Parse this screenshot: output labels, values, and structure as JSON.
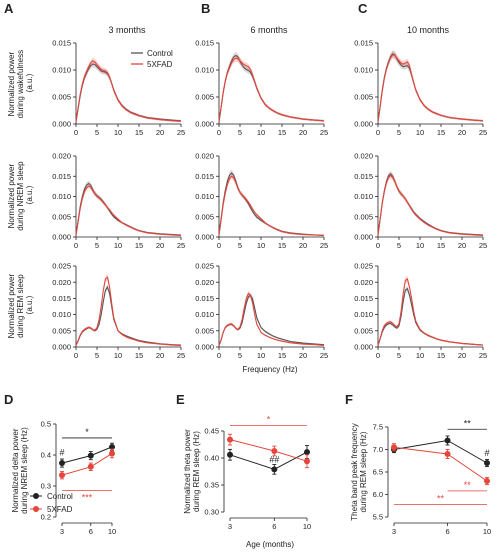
{
  "figure": {
    "panel_letters": [
      "A",
      "B",
      "C",
      "D",
      "E",
      "F"
    ],
    "column_titles": [
      "3 months",
      "6 months",
      "10 months"
    ],
    "row_ylabels": [
      [
        "Normalized power",
        "during wakefulness",
        "(a.u.)"
      ],
      [
        "Normalized power",
        "during NREM sleep",
        "(a.u.)"
      ],
      [
        "Normalized power",
        "during REM sleep",
        "(a.u.)"
      ]
    ],
    "shared_xlabel": "Frequency (Hz)",
    "legend": [
      "Control",
      "5XFAD"
    ],
    "colors": {
      "control": "#555555",
      "fxfad": "#e5453b",
      "sig_red": "#e5453b",
      "sig_black": "#222222"
    }
  },
  "chart_data": [
    {
      "type": "line",
      "panel": "A-C spectra grid",
      "x_ticks": [
        0,
        5,
        10,
        15,
        20,
        25
      ],
      "x_range": [
        0,
        25
      ],
      "rows": [
        {
          "state": "wakefulness",
          "y_ticks": [
            "0.000",
            "0.005",
            "0.010",
            "0.015"
          ],
          "ylim": [
            0,
            0.015
          ]
        },
        {
          "state": "NREM sleep",
          "y_ticks": [
            "0.000",
            "0.005",
            "0.010",
            "0.015",
            "0.020"
          ],
          "ylim": [
            0,
            0.02
          ]
        },
        {
          "state": "REM sleep",
          "y_ticks": [
            "0.000",
            "0.005",
            "0.010",
            "0.015",
            "0.020",
            "0.025"
          ],
          "ylim": [
            0,
            0.025
          ]
        }
      ],
      "x": [
        0,
        0.5,
        1,
        1.5,
        2,
        2.5,
        3,
        3.5,
        4,
        4.5,
        5,
        5.5,
        6,
        6.5,
        7,
        7.5,
        8,
        8.5,
        9,
        10,
        11,
        12,
        13,
        14,
        15,
        17,
        20,
        23,
        25
      ],
      "spectra": [
        [
          {
            "name": "Control",
            "values": [
              0.0004,
              0.0028,
              0.0052,
              0.0071,
              0.0085,
              0.0094,
              0.0102,
              0.0108,
              0.0111,
              0.011,
              0.0106,
              0.0102,
              0.0098,
              0.0097,
              0.0096,
              0.0093,
              0.0086,
              0.0075,
              0.0063,
              0.0045,
              0.0034,
              0.0027,
              0.0022,
              0.0019,
              0.0016,
              0.0012,
              0.0009,
              0.0007,
              0.0006
            ]
          },
          {
            "name": "5XFAD",
            "values": [
              0.0004,
              0.003,
              0.0055,
              0.0074,
              0.0088,
              0.0097,
              0.0106,
              0.0113,
              0.0117,
              0.0115,
              0.011,
              0.0105,
              0.0101,
              0.0099,
              0.0098,
              0.0095,
              0.0087,
              0.0075,
              0.0062,
              0.0044,
              0.0033,
              0.0026,
              0.0021,
              0.0018,
              0.0015,
              0.0011,
              0.0008,
              0.0006,
              0.0005
            ]
          }
        ],
        [
          {
            "name": "Control",
            "values": [
              0.0004,
              0.003,
              0.0058,
              0.008,
              0.0096,
              0.0107,
              0.0117,
              0.0124,
              0.0127,
              0.0124,
              0.0116,
              0.0109,
              0.0104,
              0.0101,
              0.0099,
              0.0096,
              0.0088,
              0.0078,
              0.0066,
              0.0048,
              0.0036,
              0.0029,
              0.0024,
              0.002,
              0.0017,
              0.0013,
              0.0009,
              0.0007,
              0.0006
            ]
          },
          {
            "name": "5XFAD",
            "values": [
              0.0004,
              0.0031,
              0.0059,
              0.0079,
              0.0094,
              0.0104,
              0.0113,
              0.0119,
              0.0122,
              0.0121,
              0.0117,
              0.0113,
              0.011,
              0.0108,
              0.0106,
              0.0101,
              0.0091,
              0.0079,
              0.0067,
              0.0048,
              0.0036,
              0.0029,
              0.0024,
              0.002,
              0.0017,
              0.0013,
              0.0009,
              0.0007,
              0.0006
            ]
          }
        ],
        [
          {
            "name": "Control",
            "values": [
              0.0004,
              0.0032,
              0.0062,
              0.0086,
              0.0103,
              0.0115,
              0.0125,
              0.013,
              0.0128,
              0.0121,
              0.0114,
              0.0109,
              0.0106,
              0.0107,
              0.0108,
              0.0103,
              0.009,
              0.0076,
              0.0063,
              0.0045,
              0.0034,
              0.0027,
              0.0022,
              0.0019,
              0.0016,
              0.0012,
              0.0009,
              0.0007,
              0.0006
            ]
          },
          {
            "name": "5XFAD",
            "values": [
              0.0004,
              0.0031,
              0.006,
              0.0084,
              0.0101,
              0.0113,
              0.0123,
              0.0128,
              0.0127,
              0.0122,
              0.0117,
              0.0113,
              0.0111,
              0.0113,
              0.0115,
              0.0108,
              0.0092,
              0.0077,
              0.0063,
              0.0045,
              0.0034,
              0.0027,
              0.0022,
              0.0019,
              0.0016,
              0.0012,
              0.0009,
              0.0007,
              0.0006
            ]
          }
        ],
        [
          {
            "name": "Control",
            "values": [
              0.0005,
              0.004,
              0.0075,
              0.01,
              0.0118,
              0.0128,
              0.0132,
              0.0128,
              0.0117,
              0.0108,
              0.0102,
              0.0098,
              0.0093,
              0.0087,
              0.008,
              0.0072,
              0.0064,
              0.0056,
              0.005,
              0.0041,
              0.0035,
              0.003,
              0.0025,
              0.002,
              0.0016,
              0.0011,
              0.0008,
              0.0006,
              0.0005
            ]
          },
          {
            "name": "5XFAD",
            "values": [
              0.0005,
              0.0037,
              0.007,
              0.0094,
              0.0111,
              0.0121,
              0.0126,
              0.0123,
              0.0114,
              0.0106,
              0.01,
              0.0096,
              0.0091,
              0.0085,
              0.0079,
              0.0073,
              0.0067,
              0.006,
              0.0054,
              0.0044,
              0.0035,
              0.0029,
              0.0024,
              0.0019,
              0.0015,
              0.001,
              0.0007,
              0.0005,
              0.0004
            ]
          }
        ],
        [
          {
            "name": "Control",
            "values": [
              0.0005,
              0.0045,
              0.0085,
              0.0115,
              0.0138,
              0.0152,
              0.0158,
              0.0152,
              0.0138,
              0.0122,
              0.011,
              0.0103,
              0.0097,
              0.009,
              0.0082,
              0.0072,
              0.0063,
              0.0055,
              0.0049,
              0.0041,
              0.0034,
              0.0028,
              0.0023,
              0.0018,
              0.0014,
              0.001,
              0.0007,
              0.0005,
              0.0004
            ]
          },
          {
            "name": "5XFAD",
            "values": [
              0.0005,
              0.0042,
              0.008,
              0.0108,
              0.013,
              0.0144,
              0.015,
              0.0146,
              0.0134,
              0.012,
              0.011,
              0.0104,
              0.0099,
              0.0093,
              0.0086,
              0.0078,
              0.0069,
              0.0061,
              0.0055,
              0.0045,
              0.0035,
              0.0028,
              0.0022,
              0.0017,
              0.0013,
              0.0009,
              0.0006,
              0.0005,
              0.0004
            ]
          }
        ],
        [
          {
            "name": "Control",
            "values": [
              0.0005,
              0.0044,
              0.0084,
              0.0114,
              0.0137,
              0.0151,
              0.0156,
              0.015,
              0.0138,
              0.0124,
              0.0113,
              0.0106,
              0.0101,
              0.0094,
              0.0086,
              0.0078,
              0.007,
              0.0062,
              0.0056,
              0.0046,
              0.0038,
              0.0031,
              0.0025,
              0.002,
              0.0016,
              0.0011,
              0.0008,
              0.0006,
              0.0005
            ]
          },
          {
            "name": "5XFAD",
            "values": [
              0.0005,
              0.0043,
              0.0082,
              0.0111,
              0.0133,
              0.0147,
              0.0152,
              0.0147,
              0.0137,
              0.0124,
              0.0114,
              0.0107,
              0.0101,
              0.0094,
              0.0086,
              0.0077,
              0.0068,
              0.006,
              0.0054,
              0.0044,
              0.0036,
              0.0029,
              0.0024,
              0.0019,
              0.0015,
              0.001,
              0.0007,
              0.0005,
              0.0004
            ]
          }
        ],
        [
          {
            "name": "Control",
            "values": [
              0.0005,
              0.0018,
              0.0035,
              0.0046,
              0.0052,
              0.0056,
              0.006,
              0.0058,
              0.0053,
              0.005,
              0.0055,
              0.007,
              0.01,
              0.014,
              0.0175,
              0.0185,
              0.0165,
              0.0125,
              0.0085,
              0.005,
              0.004,
              0.0034,
              0.0029,
              0.0024,
              0.002,
              0.0015,
              0.001,
              0.0007,
              0.0006
            ]
          },
          {
            "name": "5XFAD",
            "values": [
              0.0005,
              0.002,
              0.0037,
              0.0048,
              0.0054,
              0.0058,
              0.0061,
              0.0059,
              0.0054,
              0.0052,
              0.006,
              0.0085,
              0.0125,
              0.0175,
              0.021,
              0.0215,
              0.0185,
              0.0135,
              0.009,
              0.005,
              0.0038,
              0.0031,
              0.0026,
              0.0022,
              0.0018,
              0.0013,
              0.0009,
              0.0006,
              0.0005
            ]
          }
        ],
        [
          {
            "name": "Control",
            "values": [
              0.0005,
              0.0022,
              0.0045,
              0.006,
              0.0066,
              0.0069,
              0.007,
              0.0065,
              0.0058,
              0.0053,
              0.0058,
              0.0075,
              0.0105,
              0.0135,
              0.0155,
              0.016,
              0.0148,
              0.012,
              0.009,
              0.006,
              0.0048,
              0.004,
              0.0033,
              0.0028,
              0.0024,
              0.0017,
              0.0012,
              0.0009,
              0.0007
            ]
          },
          {
            "name": "5XFAD",
            "values": [
              0.0005,
              0.0022,
              0.0045,
              0.0061,
              0.0067,
              0.007,
              0.0071,
              0.0066,
              0.0058,
              0.0054,
              0.0062,
              0.0085,
              0.012,
              0.015,
              0.0165,
              0.016,
              0.0135,
              0.01,
              0.007,
              0.0045,
              0.0036,
              0.003,
              0.0025,
              0.0021,
              0.0018,
              0.0013,
              0.0009,
              0.0007,
              0.0005
            ]
          }
        ],
        [
          {
            "name": "Control",
            "values": [
              0.0005,
              0.0024,
              0.0046,
              0.006,
              0.0068,
              0.0072,
              0.0073,
              0.0068,
              0.0062,
              0.0058,
              0.0065,
              0.0095,
              0.014,
              0.0175,
              0.018,
              0.016,
              0.013,
              0.01,
              0.0075,
              0.0052,
              0.0042,
              0.0035,
              0.003,
              0.0025,
              0.0021,
              0.0016,
              0.0011,
              0.0008,
              0.0006
            ]
          },
          {
            "name": "5XFAD",
            "values": [
              0.0005,
              0.0026,
              0.005,
              0.0066,
              0.0073,
              0.0077,
              0.0078,
              0.0073,
              0.0066,
              0.0062,
              0.0072,
              0.011,
              0.0165,
              0.0205,
              0.021,
              0.0185,
              0.015,
              0.011,
              0.008,
              0.0054,
              0.0043,
              0.0036,
              0.003,
              0.0025,
              0.0021,
              0.0016,
              0.0011,
              0.0008,
              0.0006
            ]
          }
        ]
      ]
    },
    {
      "type": "line",
      "panel": "D",
      "ylabel": [
        "Normalized delta power",
        "during NREM sleep (Hz)"
      ],
      "xlabel": "",
      "x": [
        3,
        6,
        10
      ],
      "x_ticks": [
        "3",
        "6",
        "10"
      ],
      "y_ticks": [
        "0.2",
        "0.3",
        "0.4",
        "0.5"
      ],
      "ylim": [
        0.2,
        0.5
      ],
      "series": [
        {
          "name": "Control",
          "values": [
            0.374,
            0.398,
            0.426
          ],
          "err": [
            0.013,
            0.013,
            0.012
          ]
        },
        {
          "name": "5XFAD",
          "values": [
            0.335,
            0.362,
            0.405
          ],
          "err": [
            0.012,
            0.012,
            0.014
          ]
        }
      ],
      "annotations": {
        "hash": "#",
        "top_star": "*",
        "bottom_stars": "***"
      },
      "legend": [
        "Control",
        "5XFAD"
      ]
    },
    {
      "type": "line",
      "panel": "E",
      "ylabel": [
        "Normalized theta power",
        "during REM sleep (Hz)"
      ],
      "xlabel": "Age (months)",
      "x": [
        3,
        6,
        10
      ],
      "x_ticks": [
        "3",
        "6",
        "10"
      ],
      "y_ticks": [
        "0.30",
        "0.35",
        "0.40",
        "0.45"
      ],
      "ylim": [
        0.3,
        0.45
      ],
      "series": [
        {
          "name": "Control",
          "values": [
            0.406,
            0.379,
            0.411
          ],
          "err": [
            0.01,
            0.009,
            0.012
          ]
        },
        {
          "name": "5XFAD",
          "values": [
            0.434,
            0.413,
            0.394
          ],
          "err": [
            0.01,
            0.009,
            0.012
          ]
        }
      ],
      "annotations": {
        "hash": "##",
        "top_star": "*"
      }
    },
    {
      "type": "line",
      "panel": "F",
      "ylabel": [
        "Theta band peak frequency",
        "during REM sleep (Hz)"
      ],
      "xlabel": "",
      "x": [
        3,
        6,
        10
      ],
      "x_ticks": [
        "3",
        "6",
        "10"
      ],
      "y_ticks": [
        "5.5",
        "6.0",
        "6.5",
        "7.0",
        "7.5"
      ],
      "ylim": [
        5.5,
        7.5
      ],
      "series": [
        {
          "name": "Control",
          "values": [
            7.0,
            7.2,
            6.7
          ],
          "err": [
            0.07,
            0.1,
            0.08
          ]
        },
        {
          "name": "5XFAD",
          "values": [
            7.05,
            6.9,
            6.3
          ],
          "err": [
            0.08,
            0.1,
            0.08
          ]
        }
      ],
      "annotations": {
        "hash": "#",
        "top_stars": "**",
        "mid_stars": "**",
        "bottom_stars": "**"
      }
    }
  ]
}
